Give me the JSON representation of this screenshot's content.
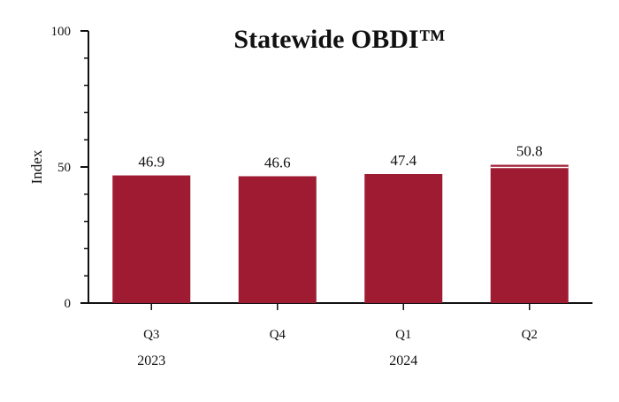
{
  "chart_data": {
    "type": "bar",
    "title": "Statewide OBDI™",
    "ylabel": "Index",
    "xlabel": "",
    "categories": [
      "Q3",
      "Q4",
      "Q1",
      "Q2"
    ],
    "year_labels": [
      {
        "label": "2023",
        "category_index": 0
      },
      {
        "label": "2024",
        "category_index": 2
      }
    ],
    "values": [
      46.9,
      46.6,
      47.4,
      50.8
    ],
    "data_labels": [
      "46.9",
      "46.6",
      "47.4",
      "50.8"
    ],
    "ylim": [
      0,
      100
    ],
    "yticks_major": [
      0,
      50,
      100
    ],
    "ytick_labels": [
      "0",
      "50",
      "100"
    ],
    "yticks_minor_step": 10,
    "grid": false,
    "bar_color": "#9e1b32",
    "highlight_last_bar": true
  }
}
